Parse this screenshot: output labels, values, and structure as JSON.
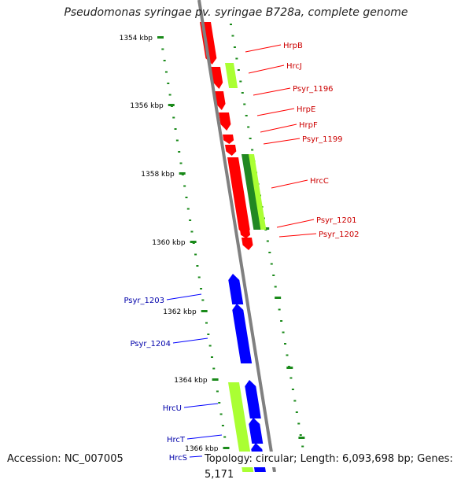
{
  "title": "Pseudomonas syringae pv. syringae B728a, complete genome",
  "footer": {
    "accession": "Accession: NC_007005",
    "topology": "Topology: circular; Length: 6,093,698 bp; Genes: 5,171"
  },
  "colors": {
    "backbone": "#808080",
    "tick": "#1a8a1a",
    "forward_gene": "#ff0000",
    "reverse_gene": "#0000ff",
    "hrc_gene_light": "#aaff33",
    "hrc_gene_dark": "#228822",
    "label_red": "#cc0000",
    "label_blue": "#0000aa"
  },
  "kbp_ticks": [
    "1354 kbp",
    "1356 kbp",
    "1358 kbp",
    "1360 kbp",
    "1362 kbp",
    "1364 kbp",
    "1366 kbp"
  ],
  "right_genes": [
    {
      "name": "HrpB"
    },
    {
      "name": "HrcJ"
    },
    {
      "name": "Psyr_1196"
    },
    {
      "name": "HrpE"
    },
    {
      "name": "HrpF"
    },
    {
      "name": "Psyr_1199"
    },
    {
      "name": "HrcC"
    },
    {
      "name": "Psyr_1201"
    },
    {
      "name": "Psyr_1202"
    }
  ],
  "left_genes": [
    {
      "name": "Psyr_1203"
    },
    {
      "name": "Psyr_1204"
    },
    {
      "name": "HrcU"
    },
    {
      "name": "HrcT"
    },
    {
      "name": "HrcS"
    }
  ]
}
